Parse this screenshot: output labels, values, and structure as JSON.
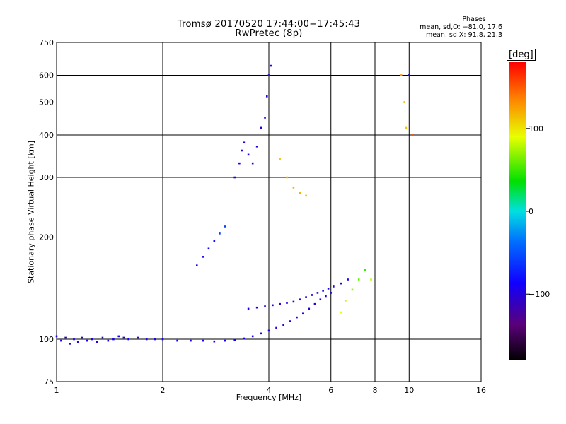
{
  "title": {
    "line1": "Tromsø 20170520 17:44:00−17:45:43",
    "line2": "RwPretec (8p)"
  },
  "phases": {
    "heading": "Phases",
    "o_line": "mean, sd,O: −81.0, 17.6",
    "x_line": "mean, sd,X:  91.8, 21.3"
  },
  "colorbar": {
    "label": "[deg]",
    "ticks": [
      {
        "value": 100,
        "label": "100"
      },
      {
        "value": 0,
        "label": "0"
      },
      {
        "value": -100,
        "label": "−100"
      }
    ],
    "range": [
      -180,
      180
    ]
  },
  "chart_data": {
    "type": "scatter",
    "title": "Tromsø 20170520 17:44:00−17:45:43",
    "subtitle": "RwPretec (8p)",
    "xlabel": "Frequency [MHz]",
    "ylabel": "Stationary phase Virtual Height [km]",
    "x_scale": "log",
    "y_scale": "log",
    "xlim": [
      1,
      16
    ],
    "ylim": [
      75,
      750
    ],
    "x_ticks": [
      {
        "value": 1,
        "label": "1"
      },
      {
        "value": 2,
        "label": "2"
      },
      {
        "value": 4,
        "label": "4"
      },
      {
        "value": 6,
        "label": "6"
      },
      {
        "value": 8,
        "label": "8"
      },
      {
        "value": 10,
        "label": "10"
      },
      {
        "value": 16,
        "label": "16"
      }
    ],
    "y_ticks": [
      {
        "value": 75,
        "label": "75"
      },
      {
        "value": 100,
        "label": "100"
      },
      {
        "value": 200,
        "label": "200"
      },
      {
        "value": 300,
        "label": "300"
      },
      {
        "value": 400,
        "label": "400"
      },
      {
        "value": 500,
        "label": "500"
      },
      {
        "value": 600,
        "label": "600"
      },
      {
        "value": 750,
        "label": "750"
      }
    ],
    "grid": true,
    "color_encoding": "phase (deg)",
    "series": [
      {
        "points": [
          [
            1.0,
            102,
            -95
          ],
          [
            1.03,
            99,
            -90
          ],
          [
            1.06,
            101,
            -100
          ],
          [
            1.09,
            97,
            -85
          ],
          [
            1.12,
            100,
            -95
          ],
          [
            1.15,
            98,
            -90
          ],
          [
            1.18,
            101,
            -100
          ],
          [
            1.22,
            99,
            -90
          ],
          [
            1.26,
            100,
            -95
          ],
          [
            1.3,
            98,
            -92
          ],
          [
            1.35,
            101,
            -88
          ],
          [
            1.4,
            99,
            -95
          ],
          [
            1.45,
            100,
            -90
          ],
          [
            1.5,
            102,
            -85
          ],
          [
            1.55,
            101,
            -92
          ],
          [
            1.6,
            100,
            -88
          ],
          [
            1.7,
            101,
            -90
          ],
          [
            1.8,
            100,
            -92
          ],
          [
            1.9,
            100,
            -88
          ],
          [
            2.0,
            100,
            -90
          ],
          [
            2.2,
            99,
            -88
          ],
          [
            2.4,
            99,
            -86
          ],
          [
            2.6,
            99,
            -84
          ],
          [
            2.8,
            98.5,
            -85
          ],
          [
            3.0,
            99,
            -86
          ],
          [
            3.2,
            99.5,
            -88
          ],
          [
            3.4,
            100.5,
            -90
          ],
          [
            3.6,
            102,
            -92
          ],
          [
            3.8,
            104,
            -94
          ],
          [
            4.0,
            106,
            -95
          ],
          [
            4.2,
            108,
            -96
          ],
          [
            4.4,
            110,
            -97
          ],
          [
            4.6,
            113,
            -98
          ],
          [
            4.8,
            116,
            -99
          ],
          [
            5.0,
            119,
            -100
          ],
          [
            5.2,
            123,
            -100
          ],
          [
            5.4,
            127,
            -100
          ],
          [
            5.6,
            131,
            -100
          ],
          [
            5.8,
            134,
            -100
          ],
          [
            6.0,
            137,
            -100
          ]
        ]
      },
      {
        "points": [
          [
            3.5,
            123,
            -90
          ],
          [
            3.7,
            124,
            -92
          ],
          [
            3.9,
            125,
            -93
          ],
          [
            4.1,
            126,
            -94
          ],
          [
            4.3,
            127,
            -95
          ],
          [
            4.5,
            128,
            -96
          ],
          [
            4.7,
            129,
            -96
          ],
          [
            4.9,
            131,
            -95
          ],
          [
            5.1,
            133,
            -95
          ],
          [
            5.3,
            135,
            -94
          ],
          [
            5.5,
            137,
            -94
          ],
          [
            5.7,
            139,
            -93
          ],
          [
            5.9,
            141,
            -92
          ],
          [
            6.1,
            143,
            -92
          ],
          [
            6.4,
            146,
            -90
          ],
          [
            6.7,
            150,
            -92
          ]
        ]
      },
      {
        "points": [
          [
            3.2,
            300,
            -100
          ],
          [
            3.3,
            330,
            -95
          ],
          [
            3.35,
            360,
            -98
          ],
          [
            3.4,
            380,
            -96
          ],
          [
            3.5,
            350,
            -100
          ],
          [
            3.6,
            330,
            -105
          ],
          [
            3.7,
            370,
            -100
          ],
          [
            3.8,
            420,
            -95
          ],
          [
            3.9,
            450,
            -92
          ],
          [
            3.95,
            520,
            -95
          ],
          [
            4.0,
            600,
            -100
          ],
          [
            4.05,
            640,
            -98
          ]
        ]
      },
      {
        "points": [
          [
            2.5,
            165,
            -95
          ],
          [
            2.6,
            175,
            -90
          ],
          [
            2.7,
            185,
            -85
          ],
          [
            2.8,
            195,
            -80
          ],
          [
            2.9,
            205,
            -60
          ],
          [
            3.0,
            215,
            -55
          ]
        ]
      },
      {
        "points": [
          [
            4.3,
            340,
            110
          ],
          [
            4.5,
            300,
            115
          ],
          [
            4.7,
            280,
            120
          ],
          [
            4.9,
            270,
            118
          ],
          [
            5.1,
            265,
            115
          ]
        ]
      },
      {
        "points": [
          [
            6.4,
            120,
            90
          ],
          [
            6.6,
            130,
            80
          ],
          [
            6.9,
            140,
            70
          ],
          [
            7.2,
            150,
            60
          ],
          [
            7.5,
            160,
            50
          ],
          [
            7.8,
            150,
            80
          ]
        ]
      },
      {
        "points": [
          [
            9.5,
            600,
            130
          ],
          [
            9.7,
            500,
            120
          ],
          [
            9.8,
            420,
            110
          ],
          [
            10.0,
            600,
            -100
          ],
          [
            10.2,
            400,
            150
          ]
        ]
      }
    ]
  }
}
